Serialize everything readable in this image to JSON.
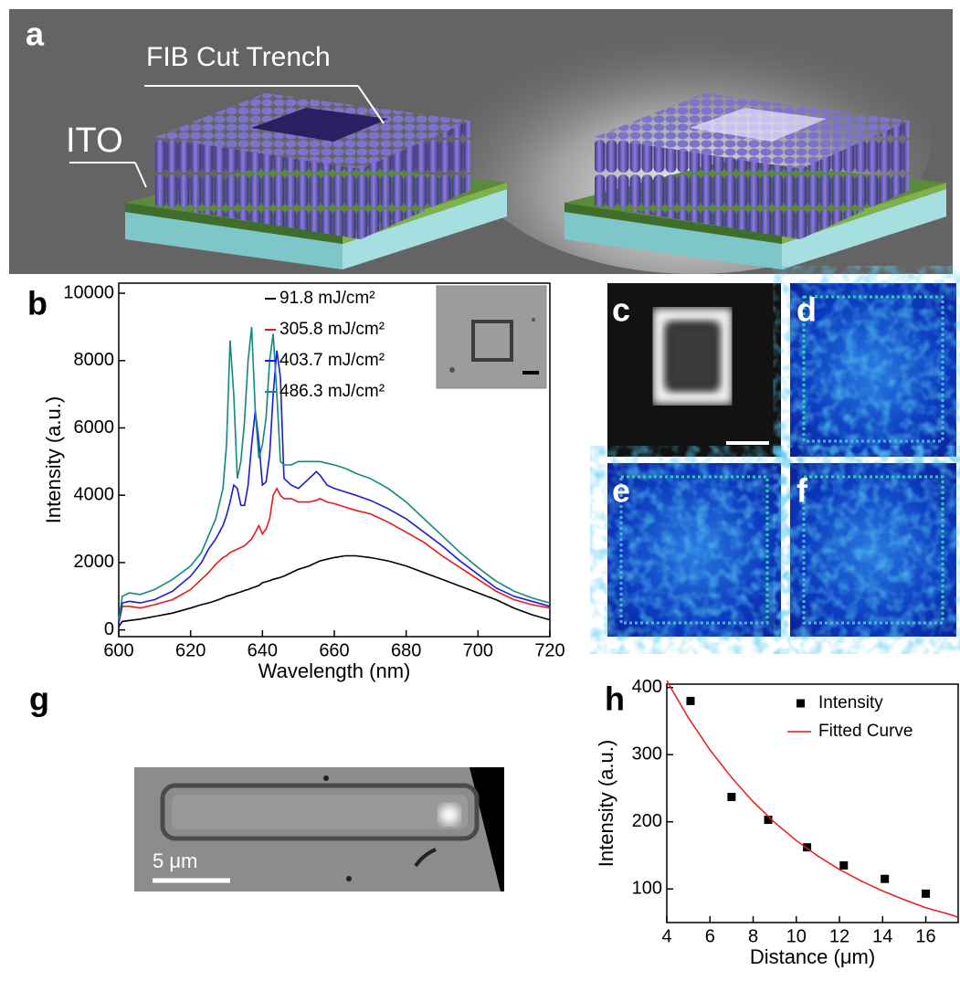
{
  "panels": {
    "a": {
      "label": "a",
      "annotations": [
        "FIB Cut Trench",
        "ITO"
      ]
    },
    "b": {
      "label": "b"
    },
    "c": {
      "label": "c"
    },
    "d": {
      "label": "d"
    },
    "e": {
      "label": "e"
    },
    "f": {
      "label": "f"
    },
    "g": {
      "label": "g",
      "scale_bar": "5 μm"
    },
    "h": {
      "label": "h"
    }
  },
  "chart_data": [
    {
      "type": "line",
      "x_label": "Wavelength (nm)",
      "y_label": "Intensity (a.u.)",
      "x": [
        600,
        601,
        603,
        606,
        610,
        615,
        620,
        623,
        625,
        627,
        629,
        630,
        631,
        632,
        633,
        634,
        635,
        636,
        637,
        638,
        639,
        640,
        641,
        642,
        643,
        644,
        645,
        646,
        648,
        650,
        653,
        655,
        656,
        658,
        660,
        663,
        666,
        670,
        675,
        680,
        685,
        690,
        695,
        700,
        705,
        710,
        715,
        720
      ],
      "series": [
        {
          "name": "91.8 mJ/cm²",
          "color": "#000000",
          "values": [
            100,
            250,
            280,
            320,
            400,
            500,
            650,
            750,
            800,
            870,
            950,
            1000,
            1030,
            1060,
            1100,
            1130,
            1170,
            1200,
            1240,
            1280,
            1320,
            1400,
            1430,
            1460,
            1500,
            1530,
            1560,
            1600,
            1700,
            1800,
            1900,
            2000,
            2050,
            2100,
            2150,
            2200,
            2200,
            2150,
            2050,
            1900,
            1700,
            1500,
            1300,
            1100,
            900,
            650,
            450,
            300
          ]
        },
        {
          "name": "305.8 mJ/cm²",
          "color": "#e8191b",
          "values": [
            200,
            700,
            700,
            650,
            750,
            900,
            1200,
            1500,
            1700,
            1950,
            2150,
            2200,
            2300,
            2350,
            2400,
            2450,
            2500,
            2600,
            2700,
            2900,
            3100,
            2850,
            3000,
            3300,
            4000,
            4200,
            4000,
            3900,
            3900,
            3800,
            3800,
            3850,
            3900,
            3800,
            3750,
            3650,
            3550,
            3450,
            3200,
            2900,
            2600,
            2200,
            1850,
            1500,
            1150,
            900,
            750,
            650
          ]
        },
        {
          "name": "403.7 mJ/cm²",
          "color": "#1a1adb",
          "values": [
            200,
            800,
            850,
            800,
            900,
            1150,
            1600,
            2000,
            2400,
            2700,
            3100,
            3400,
            3800,
            4300,
            4200,
            3700,
            3700,
            4300,
            5500,
            6500,
            5600,
            4300,
            4400,
            5200,
            7000,
            8300,
            7500,
            4500,
            4300,
            4200,
            4500,
            4700,
            4600,
            4300,
            4200,
            4100,
            4000,
            3850,
            3600,
            3300,
            2900,
            2500,
            2050,
            1650,
            1250,
            1000,
            850,
            700
          ]
        },
        {
          "name": "486.3 mJ/cm²",
          "color": "#0f8a80",
          "values": [
            300,
            1000,
            1100,
            1050,
            1200,
            1500,
            1900,
            2300,
            2800,
            3300,
            4200,
            5500,
            8600,
            7000,
            4500,
            5000,
            6200,
            8000,
            9000,
            6500,
            5100,
            5500,
            6300,
            8000,
            8800,
            7000,
            5000,
            4900,
            4900,
            5000,
            5000,
            5000,
            5000,
            4950,
            4900,
            4800,
            4650,
            4500,
            4200,
            3800,
            3300,
            2800,
            2300,
            1850,
            1450,
            1150,
            950,
            800
          ]
        }
      ],
      "xlim": [
        600,
        720
      ],
      "ylim": [
        -200,
        10300
      ],
      "xticks": [
        600,
        620,
        640,
        660,
        680,
        700,
        720
      ],
      "yticks": [
        0,
        2000,
        4000,
        6000,
        8000,
        10000
      ]
    },
    {
      "type": "scatter",
      "x_label": "Distance (μm)",
      "y_label": "Intensity (a.u.)",
      "series": [
        {
          "name": "Intensity",
          "color": "#000000",
          "mode": "markers",
          "x": [
            5.1,
            7.0,
            8.7,
            10.5,
            12.2,
            14.1,
            16.0
          ],
          "values": [
            380,
            237,
            203,
            162,
            135,
            115,
            93
          ]
        },
        {
          "name": "Fitted Curve",
          "color": "#e8191b",
          "mode": "line",
          "x": [
            4,
            5,
            6,
            7,
            8,
            9,
            10,
            11,
            12,
            13,
            14,
            15,
            16,
            17,
            17.5
          ],
          "values": [
            410,
            355,
            307,
            266,
            230,
            199,
            172,
            149,
            129,
            112,
            97,
            84,
            72,
            63,
            58
          ]
        }
      ],
      "xlim": [
        4,
        17.5
      ],
      "ylim": [
        50,
        405
      ],
      "xticks": [
        4,
        6,
        8,
        10,
        12,
        14,
        16
      ],
      "yticks": [
        100,
        200,
        300,
        400
      ]
    }
  ]
}
